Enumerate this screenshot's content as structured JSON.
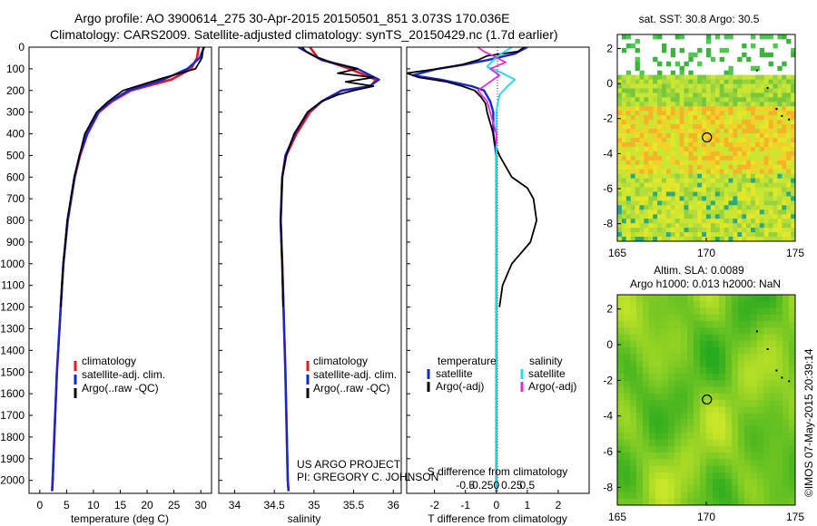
{
  "title": {
    "line1": "Argo profile: AO 3900614_275 30-Apr-2015 20150501_851 3.073S 170.036E",
    "line2": "Climatology: CARS2009. Satellite-adjusted climatology: synTS_20150429.nc (1.7d earlier)"
  },
  "colors": {
    "clim": "#e8141e",
    "sat": "#1428d2",
    "argo": "#000000",
    "sal_sat": "#28dcf0",
    "sal_argo": "#e628dc"
  },
  "chart_data": [
    {
      "type": "line",
      "name": "temperature-profile",
      "xlabel": "temperature (deg C)",
      "xlim": [
        -2,
        32
      ],
      "ylim": [
        0,
        2060
      ],
      "xticks": [
        0,
        5,
        10,
        15,
        20,
        25,
        30
      ],
      "yticks": [
        0,
        100,
        200,
        300,
        400,
        500,
        600,
        700,
        800,
        900,
        1000,
        1100,
        1200,
        1300,
        1400,
        1500,
        1600,
        1700,
        1800,
        1900,
        2000
      ],
      "legend": [
        "climatology",
        "satellite-adj. clim.",
        "Argo(..raw -QC)"
      ],
      "series": [
        {
          "name": "climatology",
          "depth": [
            0,
            50,
            100,
            150,
            200,
            250,
            300,
            400,
            500,
            600,
            800,
            1000,
            1200,
            1500,
            1800,
            2000,
            2050
          ],
          "values": [
            29.6,
            29.3,
            28.2,
            24.5,
            17.0,
            13.5,
            11.0,
            8.9,
            7.5,
            6.5,
            5.2,
            4.4,
            3.9,
            3.2,
            2.7,
            2.4,
            2.3
          ]
        },
        {
          "name": "satellite-adj. clim.",
          "depth": [
            0,
            50,
            100,
            150,
            200,
            250,
            300,
            400,
            500,
            600,
            800,
            1000,
            1200,
            1500,
            1800,
            2000,
            2050
          ],
          "values": [
            30.6,
            29.8,
            27.5,
            23.0,
            16.5,
            13.2,
            10.9,
            8.8,
            7.4,
            6.5,
            5.2,
            4.4,
            3.9,
            3.2,
            2.7,
            2.4,
            2.3
          ]
        },
        {
          "name": "Argo(..raw -QC)",
          "depth": [
            0,
            50,
            100,
            150,
            200,
            250,
            300,
            400,
            500,
            600,
            800,
            1000,
            1100,
            1200
          ],
          "values": [
            30.5,
            30.2,
            29.0,
            22.0,
            15.5,
            12.8,
            10.6,
            8.4,
            7.4,
            6.4,
            5.1,
            4.4,
            4.1,
            3.9
          ]
        }
      ]
    },
    {
      "type": "line",
      "name": "salinity-profile",
      "xlabel": "salinity",
      "xlim": [
        33.8,
        36.1
      ],
      "ylim": [
        0,
        2060
      ],
      "xticks": [
        34,
        34.5,
        35,
        35.5,
        36
      ],
      "legend": [
        "climatology",
        "satellite-adj. clim.",
        "Argo(..raw -QC)"
      ],
      "series": [
        {
          "name": "climatology",
          "depth": [
            0,
            50,
            100,
            150,
            180,
            200,
            250,
            300,
            400,
            500,
            600,
            800,
            1000,
            1500,
            2000,
            2050
          ],
          "values": [
            34.95,
            35.05,
            35.45,
            35.78,
            35.72,
            35.35,
            35.1,
            34.95,
            34.78,
            34.65,
            34.6,
            34.58,
            34.6,
            34.64,
            34.67,
            34.68
          ]
        },
        {
          "name": "satellite-adj. clim.",
          "depth": [
            0,
            30,
            60,
            100,
            150,
            180,
            200,
            250,
            300,
            400,
            500,
            600,
            800,
            1000,
            1500,
            2000,
            2050
          ],
          "values": [
            34.8,
            34.95,
            35.1,
            35.55,
            35.82,
            35.7,
            35.35,
            35.1,
            34.92,
            34.76,
            34.64,
            34.6,
            34.58,
            34.6,
            34.64,
            34.67,
            34.68
          ]
        },
        {
          "name": "Argo(..raw -QC)",
          "depth": [
            0,
            20,
            40,
            70,
            100,
            120,
            140,
            160,
            180,
            200,
            220,
            250,
            300,
            400,
            500,
            600,
            800,
            1000,
            1200
          ],
          "values": [
            34.85,
            34.9,
            35.0,
            35.2,
            35.55,
            35.3,
            35.75,
            35.4,
            35.75,
            35.5,
            35.3,
            35.1,
            34.92,
            34.75,
            34.65,
            34.6,
            34.58,
            34.6,
            34.61
          ]
        }
      ]
    },
    {
      "type": "line",
      "name": "difference-profile",
      "xlabel_top": "S difference from climatology",
      "xlabel_bottom": "T difference from climatology",
      "xlim": [
        -2.9,
        3.0
      ],
      "xticks": [
        -2,
        -1,
        0,
        1,
        2
      ],
      "sticks": [
        -0.5,
        -0.25,
        0,
        0.25,
        0.5
      ],
      "stick_labels": [
        "-0.5",
        "-0.25",
        "0",
        "0.25",
        "0.5"
      ],
      "legend_headers": [
        "temperature",
        "salinity"
      ],
      "legend": [
        "satellite",
        "Argo(-adj)",
        "satellite",
        "Argo(-adj)"
      ],
      "series": [
        {
          "name": "T satellite",
          "depth": [
            0,
            30,
            60,
            80,
            100,
            130,
            150,
            180,
            200,
            250,
            300,
            400,
            500,
            700,
            1000,
            1500,
            2000,
            2050
          ],
          "values": [
            1.0,
            0.6,
            -0.3,
            -1.0,
            -1.9,
            -2.7,
            -1.8,
            -0.8,
            -0.4,
            -0.2,
            -0.1,
            -0.1,
            0,
            0,
            0,
            0,
            0,
            0
          ]
        },
        {
          "name": "T Argo(-adj)",
          "depth": [
            0,
            20,
            40,
            60,
            80,
            100,
            120,
            140,
            160,
            180,
            200,
            230,
            260,
            300,
            350,
            400,
            450,
            500,
            550,
            600,
            650,
            700,
            800,
            900,
            1000,
            1100,
            1200
          ],
          "values": [
            0.9,
            0.7,
            -0.3,
            -0.6,
            -1.1,
            -1.9,
            -2.9,
            -2.5,
            -1.6,
            -1.1,
            -0.7,
            -0.5,
            -0.35,
            -0.3,
            -0.2,
            -0.1,
            -0.05,
            0.1,
            0.3,
            0.5,
            1.0,
            1.2,
            1.3,
            1.1,
            0.5,
            0.2,
            0.1
          ]
        },
        {
          "name": "S satellite",
          "depth": [
            0,
            30,
            60,
            90,
            120,
            150,
            180,
            220,
            260,
            300,
            400,
            500,
            700,
            1000,
            1500,
            2000,
            2050
          ],
          "values": [
            0.25,
            0.08,
            -0.05,
            -0.15,
            0.1,
            0.3,
            0.18,
            0.05,
            0.02,
            0,
            0,
            0,
            0,
            0,
            0,
            0,
            0
          ]
        },
        {
          "name": "S Argo(-adj)",
          "depth": [
            0,
            20,
            40,
            70,
            100,
            130,
            160,
            200,
            250,
            300,
            350,
            400,
            450
          ],
          "values": [
            -0.3,
            -0.2,
            -0.05,
            0.15,
            -0.1,
            0.05,
            -0.1,
            -0.3,
            -0.15,
            -0.1,
            -0.05,
            0,
            0
          ]
        }
      ]
    },
    {
      "type": "heatmap",
      "name": "sst-map",
      "title": "sat. SST: 30.8  Argo: 30.5",
      "xlim": [
        165,
        175
      ],
      "ylim": [
        -9,
        2.8
      ],
      "xticks": [
        165,
        170,
        175
      ],
      "yticks": [
        2,
        0,
        -2,
        -4,
        -6,
        -8
      ],
      "argo_position": {
        "lon": 170.036,
        "lat": -3.073
      }
    },
    {
      "type": "heatmap",
      "name": "sla-map",
      "title": "Altim. SLA: 0.0089",
      "subtitle": "Argo h1000: 0.013  h2000: NaN",
      "xlim": [
        165,
        175
      ],
      "ylim": [
        -9,
        2.8
      ],
      "xticks": [
        165,
        170,
        175
      ],
      "yticks": [
        2,
        0,
        -2,
        -4,
        -6,
        -8
      ],
      "argo_position": {
        "lon": 170.036,
        "lat": -3.073
      }
    }
  ],
  "annotations": {
    "project": "US ARGO PROJECT",
    "pi": "PI: GREGORY C. JOHNSON",
    "imos": "©IMOS 07-May-2015 20:39:14"
  }
}
